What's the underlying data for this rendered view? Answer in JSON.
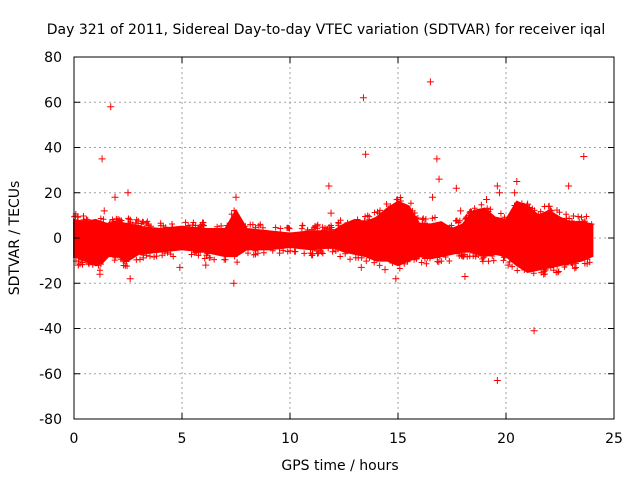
{
  "chart_data": {
    "type": "scatter",
    "title": "Day 321 of 2011, Sidereal Day-to-day VTEC variation (SDTVAR) for receiver iqal",
    "xlabel": "GPS time / hours",
    "ylabel": "SDTVAR / TECUs",
    "xlim": [
      0,
      25
    ],
    "ylim": [
      -80,
      80
    ],
    "xticks": [
      "0",
      "5",
      "10",
      "15",
      "20",
      "25"
    ],
    "yticks": [
      "-80",
      "-60",
      "-40",
      "-20",
      "0",
      "20",
      "40",
      "60",
      "80"
    ],
    "grid": true,
    "marker": "+",
    "color": "#ff0000",
    "band": {
      "x": [
        0,
        0.5,
        1.0,
        1.3,
        1.6,
        2.0,
        2.5,
        3.0,
        4.0,
        5.0,
        6.0,
        7.0,
        7.5,
        8.0,
        9.0,
        10.0,
        11.0,
        12.0,
        12.5,
        13.0,
        13.5,
        14.0,
        14.5,
        15.0,
        15.5,
        16.0,
        16.5,
        17.0,
        17.5,
        18.0,
        18.5,
        19.0,
        19.5,
        20.0,
        20.5,
        21.0,
        21.5,
        22.0,
        22.5,
        23.0,
        23.5,
        24.0
      ],
      "upper": [
        8,
        7,
        8,
        7,
        6,
        7,
        6,
        5,
        4,
        5,
        4,
        4,
        12,
        4,
        3,
        2,
        3,
        3,
        6,
        8,
        7,
        9,
        13,
        16,
        14,
        6,
        6,
        7,
        4,
        6,
        12,
        13,
        9,
        8,
        16,
        14,
        10,
        12,
        9,
        7,
        7,
        6
      ],
      "lower": [
        -8,
        -10,
        -12,
        -11,
        -8,
        -8,
        -10,
        -7,
        -6,
        -5,
        -6,
        -8,
        -8,
        -5,
        -5,
        -4,
        -5,
        -4,
        -6,
        -7,
        -8,
        -10,
        -10,
        -12,
        -10,
        -8,
        -9,
        -8,
        -7,
        -6,
        -6,
        -8,
        -7,
        -8,
        -12,
        -15,
        -14,
        -13,
        -12,
        -11,
        -10,
        -8
      ]
    },
    "outliers": [
      {
        "x": 1.3,
        "y": 35
      },
      {
        "x": 1.7,
        "y": 58
      },
      {
        "x": 1.9,
        "y": 18
      },
      {
        "x": 1.4,
        "y": 12
      },
      {
        "x": 2.5,
        "y": 20
      },
      {
        "x": 2.6,
        "y": -18
      },
      {
        "x": 1.2,
        "y": -16
      },
      {
        "x": 0.2,
        "y": -12
      },
      {
        "x": 4.9,
        "y": -13
      },
      {
        "x": 6.1,
        "y": -12
      },
      {
        "x": 7.4,
        "y": -20
      },
      {
        "x": 7.5,
        "y": 18
      },
      {
        "x": 11.8,
        "y": 23
      },
      {
        "x": 11.9,
        "y": 11
      },
      {
        "x": 13.4,
        "y": 62
      },
      {
        "x": 13.5,
        "y": 37
      },
      {
        "x": 13.3,
        "y": -13
      },
      {
        "x": 14.4,
        "y": -14
      },
      {
        "x": 14.9,
        "y": -18
      },
      {
        "x": 16.5,
        "y": 69
      },
      {
        "x": 16.8,
        "y": 35
      },
      {
        "x": 16.9,
        "y": 26
      },
      {
        "x": 16.6,
        "y": 18
      },
      {
        "x": 17.7,
        "y": 22
      },
      {
        "x": 18.1,
        "y": -17
      },
      {
        "x": 17.9,
        "y": 12
      },
      {
        "x": 19.6,
        "y": 23
      },
      {
        "x": 19.7,
        "y": 20
      },
      {
        "x": 19.6,
        "y": -63
      },
      {
        "x": 20.4,
        "y": 20
      },
      {
        "x": 20.5,
        "y": 25
      },
      {
        "x": 21.3,
        "y": -41
      },
      {
        "x": 22.9,
        "y": 23
      },
      {
        "x": 23.6,
        "y": 36
      },
      {
        "x": 21.0,
        "y": 15
      },
      {
        "x": 22.0,
        "y": 14
      },
      {
        "x": 20.1,
        "y": -12
      },
      {
        "x": 19.1,
        "y": 17
      }
    ]
  }
}
